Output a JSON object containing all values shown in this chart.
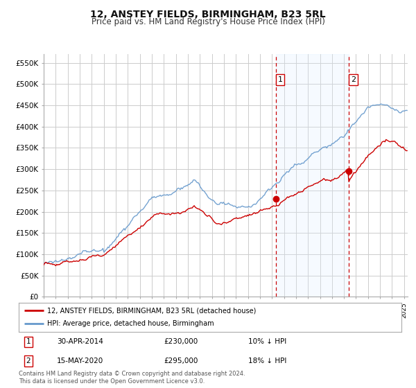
{
  "title": "12, ANSTEY FIELDS, BIRMINGHAM, B23 5RL",
  "subtitle": "Price paid vs. HM Land Registry's House Price Index (HPI)",
  "title_fontsize": 10,
  "subtitle_fontsize": 8.5,
  "background_color": "#ffffff",
  "plot_bg_color": "#ffffff",
  "grid_color": "#cccccc",
  "hpi_color": "#6699cc",
  "hpi_fill_color": "#ddeeff",
  "price_color": "#cc0000",
  "sale1_date": "30-APR-2014",
  "sale1_price": 230000,
  "sale1_label": "10% ↓ HPI",
  "sale2_date": "15-MAY-2020",
  "sale2_price": 295000,
  "sale2_label": "18% ↓ HPI",
  "yticks": [
    0,
    50000,
    100000,
    150000,
    200000,
    250000,
    300000,
    350000,
    400000,
    450000,
    500000,
    550000
  ],
  "ymin": 0,
  "ymax": 570000,
  "xmin": 1995.0,
  "xmax": 2025.3,
  "legend_label1": "12, ANSTEY FIELDS, BIRMINGHAM, B23 5RL (detached house)",
  "legend_label2": "HPI: Average price, detached house, Birmingham",
  "footnote": "Contains HM Land Registry data © Crown copyright and database right 2024.\nThis data is licensed under the Open Government Licence v3.0.",
  "sale1_x": 2014.33,
  "sale2_x": 2020.4,
  "vline_color": "#cc0000",
  "span_color": "#ddeeff"
}
